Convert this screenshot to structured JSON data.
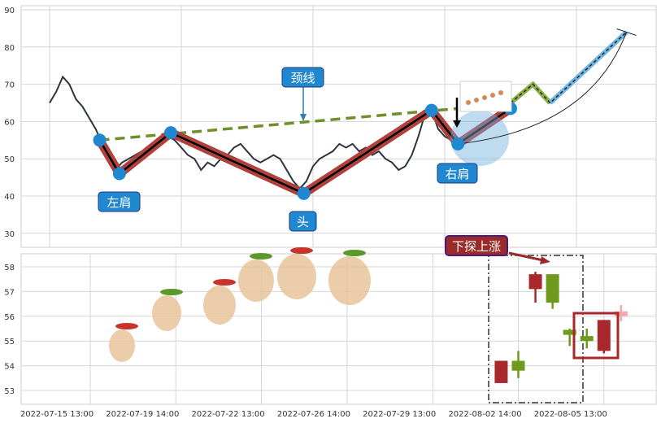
{
  "chart_data": [
    {
      "type": "line",
      "panel": "top",
      "title": "",
      "ylim": [
        25,
        91
      ],
      "yticks": [
        30,
        40,
        50,
        60,
        70,
        80,
        90
      ],
      "xlim": [
        -2,
        46
      ],
      "grid": true,
      "price_series": {
        "x_step": 0.5,
        "values": [
          65,
          68,
          72,
          70,
          66,
          64,
          61,
          58,
          54,
          49,
          47,
          49,
          50,
          51,
          52,
          51,
          53,
          55,
          56,
          55,
          53,
          51,
          50,
          47,
          49,
          48,
          50,
          51,
          53,
          54,
          52,
          50,
          49,
          50,
          51,
          50,
          47,
          44,
          42,
          44,
          48,
          50,
          51,
          52,
          54,
          53,
          54,
          52,
          53,
          51,
          52,
          50,
          49,
          47,
          48,
          51,
          56,
          62,
          63,
          58,
          56,
          55
        ]
      },
      "pattern": {
        "x": [
          3.8,
          5.3,
          9.2,
          19.3,
          29,
          31,
          35
        ],
        "y": [
          55,
          46,
          57,
          40.7,
          63,
          54,
          63.5
        ]
      },
      "projection": {
        "x": [
          31,
          35,
          36.7,
          38,
          43.8
        ],
        "y": [
          54,
          65,
          70,
          65,
          84
        ]
      },
      "neckline": {
        "x": [
          3.8,
          31
        ],
        "y": [
          55,
          63.5
        ]
      },
      "annotations": [
        {
          "text": "左肩",
          "x": 5.3,
          "y": 37
        },
        {
          "text": "颈线",
          "x": 19.3,
          "y": 71
        },
        {
          "text": "头",
          "x": 19.3,
          "y": 32
        },
        {
          "text": "右肩",
          "x": 31,
          "y": 45
        }
      ],
      "colors": {
        "price": "#2f3540",
        "pattern": "#b0413a",
        "neckline": "#6f8f2a",
        "marker": "#1f88d0",
        "label_bg": "#1f88d0",
        "projection_up": "#6fb6e0",
        "projection_mid": "#8fae4a"
      }
    },
    {
      "type": "candlestick",
      "panel": "bottom",
      "ylim": [
        52.5,
        58.5
      ],
      "yticks": [
        53,
        54,
        55,
        56,
        57,
        58
      ],
      "xticks": [
        "2022-07-15 13:00",
        "2022-07-19 14:00",
        "2022-07-22 13:00",
        "2022-07-26 14:00",
        "2022-07-29 13:00",
        "2022-08-02 14:00",
        "2022-08-05 13:00"
      ],
      "candles": [
        {
          "x": 4.8,
          "open": 54.2,
          "close": 53.3,
          "high": 54.2,
          "low": 53.3,
          "color": "#a8282c"
        },
        {
          "x": 5.0,
          "open": 53.8,
          "close": 54.2,
          "high": 54.6,
          "low": 53.5,
          "color": "#6f9a1e"
        },
        {
          "x": 5.2,
          "open": 57.7,
          "close": 57.1,
          "high": 57.8,
          "low": 56.55,
          "color": "#a8282c"
        },
        {
          "x": 5.4,
          "open": 56.55,
          "close": 57.7,
          "high": 57.7,
          "low": 56.3,
          "color": "#6f9a1e"
        },
        {
          "x": 5.6,
          "open": 55.25,
          "close": 55.45,
          "high": 55.5,
          "low": 54.8,
          "color": "#6f9a1e"
        },
        {
          "x": 5.8,
          "open": 55.0,
          "close": 55.2,
          "high": 55.5,
          "low": 54.7,
          "color": "#6f9a1e"
        },
        {
          "x": 6.0,
          "open": 55.85,
          "close": 54.6,
          "high": 55.85,
          "low": 54.5,
          "color": "#a8282c"
        },
        {
          "x": 6.2,
          "open": 56.2,
          "close": 56.0,
          "high": 56.45,
          "low": 55.8,
          "color": "#f4a9a8"
        }
      ],
      "annotation": {
        "text": "下探上涨",
        "bg": "#9b2a2a",
        "border": "#4b1a80"
      }
    }
  ]
}
